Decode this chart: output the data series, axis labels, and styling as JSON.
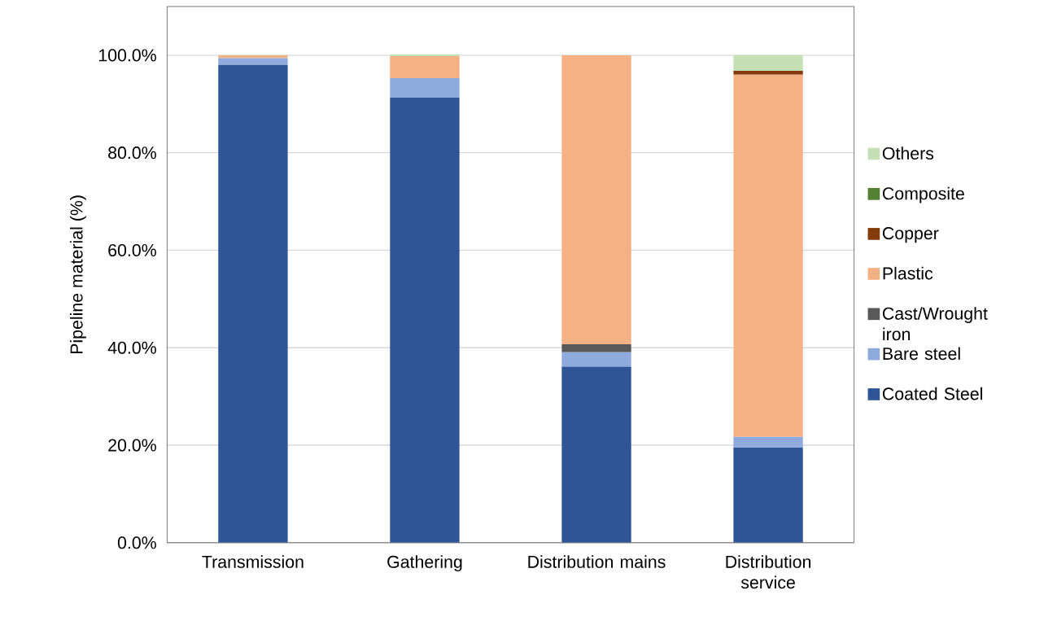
{
  "chart_data": {
    "type": "bar",
    "stacked": true,
    "ylabel": "Pipeline material (%)",
    "categories": [
      "Transmission",
      "Gathering",
      "Distribution mains",
      "Distribution service"
    ],
    "series": [
      {
        "name": "Coated Steel",
        "color": "#2f5597",
        "values": [
          98.0,
          91.3,
          36.1,
          19.5
        ]
      },
      {
        "name": "Bare steel",
        "color": "#8faadc",
        "values": [
          1.4,
          4.0,
          3.0,
          2.2
        ]
      },
      {
        "name": "Cast/Wrought iron",
        "color": "#595959",
        "values": [
          0,
          0,
          1.6,
          0
        ]
      },
      {
        "name": "Plastic",
        "color": "#f4b183",
        "values": [
          0.6,
          4.5,
          59.3,
          74.3
        ]
      },
      {
        "name": "Copper",
        "color": "#843c0c",
        "values": [
          0,
          0,
          0,
          0.8
        ]
      },
      {
        "name": "Composite",
        "color": "#548235",
        "values": [
          0,
          0,
          0,
          0
        ]
      },
      {
        "name": "Others",
        "color": "#c5e0b4",
        "values": [
          0,
          0.4,
          0,
          3.2
        ]
      }
    ],
    "ylim": [
      0,
      110
    ],
    "yticks": [
      {
        "value": 0,
        "label": "0.0%"
      },
      {
        "value": 20,
        "label": "20.0%"
      },
      {
        "value": 40,
        "label": "40.0%"
      },
      {
        "value": 60,
        "label": "60.0%"
      },
      {
        "value": 80,
        "label": "80.0%"
      },
      {
        "value": 100,
        "label": "100.0%"
      }
    ],
    "grid": "y",
    "legend": "right"
  }
}
